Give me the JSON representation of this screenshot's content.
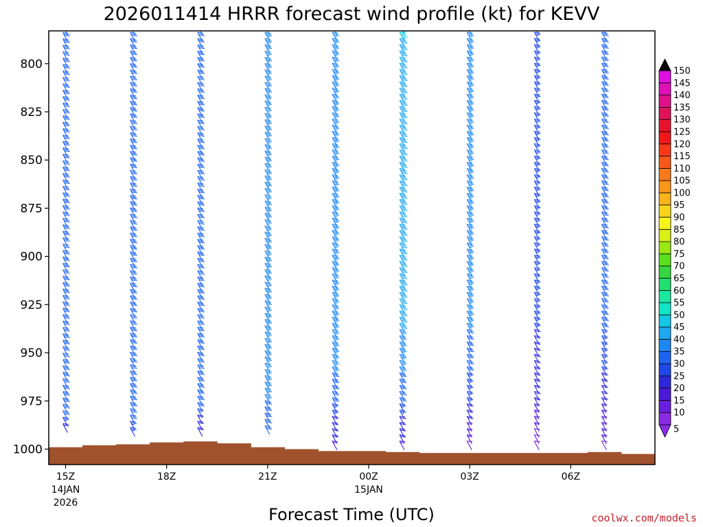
{
  "chart_data": {
    "type": "wind-barb-time-height",
    "title": "2026011414 HRRR forecast wind profile (kt) for KEVV",
    "xlabel": "Forecast Time (UTC)",
    "ylabel": "",
    "credit": "coolwx.com/models",
    "y_axis": {
      "units": "hPa",
      "inverted": true,
      "range": [
        1008,
        783
      ],
      "ticks": [
        800,
        825,
        850,
        875,
        900,
        925,
        950,
        975,
        1000
      ],
      "tick_labels": [
        "800",
        "825",
        "850",
        "875",
        "900",
        "925",
        "950",
        "975",
        "1000"
      ]
    },
    "x_axis": {
      "range_hours": [
        -0.5,
        17.5
      ],
      "ticks": [
        {
          "hour": 0,
          "label": "15Z",
          "sub": [
            "14JAN",
            "2026"
          ]
        },
        {
          "hour": 3,
          "label": "18Z",
          "sub": []
        },
        {
          "hour": 6,
          "label": "21Z",
          "sub": []
        },
        {
          "hour": 9,
          "label": "00Z",
          "sub": [
            "15JAN"
          ]
        },
        {
          "hour": 12,
          "label": "03Z",
          "sub": []
        },
        {
          "hour": 15,
          "label": "06Z",
          "sub": []
        }
      ]
    },
    "terrain": {
      "color": "#a0522d",
      "surface_pressure_hpa": [
        999,
        998,
        997.5,
        996.5,
        996,
        997,
        999,
        1000,
        1001,
        1001,
        1001.5,
        1002,
        1002,
        1002,
        1002,
        1002,
        1001.5,
        1002.5
      ]
    },
    "barb_columns": [
      {
        "hour": 0,
        "bottom_hpa": 990,
        "speed_kt": [
          30,
          30,
          30,
          30,
          30,
          30,
          30,
          30,
          30,
          30,
          30,
          30,
          30,
          30,
          30,
          30,
          30,
          30,
          30,
          30,
          30,
          30,
          30,
          30,
          30,
          30,
          30,
          30,
          30,
          30,
          30,
          30,
          30,
          30,
          30,
          30,
          30,
          30,
          30,
          30,
          30,
          30,
          30,
          30,
          30,
          30,
          30,
          30,
          30,
          30,
          30,
          30,
          30,
          30,
          30,
          30,
          30,
          30,
          30,
          30,
          30,
          25,
          20
        ]
      },
      {
        "hour": 2,
        "bottom_hpa": 992,
        "speed_kt": [
          30,
          30,
          30,
          30,
          30,
          30,
          30,
          30,
          30,
          30,
          30,
          30,
          30,
          30,
          30,
          30,
          30,
          30,
          30,
          30,
          30,
          30,
          30,
          30,
          30,
          30,
          30,
          30,
          30,
          30,
          30,
          30,
          30,
          30,
          30,
          30,
          30,
          30,
          30,
          30,
          30,
          30,
          30,
          30,
          30,
          30,
          30,
          30,
          30,
          30,
          30,
          30,
          30,
          30,
          30,
          30,
          30,
          30,
          30,
          30,
          30,
          30,
          30,
          25,
          25
        ]
      },
      {
        "hour": 4,
        "bottom_hpa": 992,
        "speed_kt": [
          30,
          30,
          30,
          30,
          30,
          30,
          30,
          30,
          30,
          30,
          30,
          30,
          30,
          30,
          30,
          30,
          30,
          30,
          30,
          30,
          30,
          30,
          30,
          30,
          30,
          30,
          30,
          30,
          30,
          30,
          30,
          30,
          30,
          30,
          30,
          30,
          30,
          30,
          30,
          30,
          30,
          30,
          30,
          30,
          30,
          30,
          30,
          30,
          30,
          30,
          30,
          30,
          30,
          30,
          30,
          30,
          30,
          30,
          30,
          30,
          30,
          25,
          20,
          20,
          20
        ]
      },
      {
        "hour": 6,
        "bottom_hpa": 991,
        "speed_kt": [
          35,
          35,
          35,
          35,
          35,
          35,
          35,
          35,
          35,
          35,
          35,
          35,
          35,
          35,
          35,
          35,
          35,
          35,
          35,
          35,
          35,
          35,
          35,
          35,
          35,
          35,
          35,
          35,
          35,
          35,
          35,
          35,
          35,
          35,
          35,
          35,
          35,
          35,
          35,
          35,
          35,
          35,
          35,
          35,
          35,
          35,
          35,
          35,
          35,
          35,
          35,
          35,
          35,
          35,
          35,
          35,
          35,
          35,
          35,
          35,
          30,
          30,
          30,
          30,
          30
        ]
      },
      {
        "hour": 8,
        "bottom_hpa": 999,
        "speed_kt": [
          35,
          35,
          35,
          35,
          35,
          35,
          35,
          35,
          35,
          35,
          35,
          35,
          35,
          35,
          35,
          35,
          35,
          35,
          35,
          35,
          35,
          35,
          35,
          35,
          35,
          35,
          35,
          35,
          35,
          35,
          35,
          35,
          35,
          35,
          35,
          35,
          35,
          35,
          35,
          35,
          35,
          35,
          35,
          35,
          35,
          35,
          35,
          35,
          35,
          35,
          35,
          35,
          35,
          35,
          35,
          35,
          30,
          30,
          30,
          30,
          30,
          25,
          25,
          20,
          20,
          20,
          20,
          15
        ]
      },
      {
        "hour": 10,
        "bottom_hpa": 999,
        "speed_kt": [
          45,
          45,
          40,
          40,
          40,
          40,
          40,
          40,
          40,
          40,
          40,
          40,
          40,
          40,
          40,
          40,
          40,
          40,
          40,
          40,
          40,
          40,
          40,
          40,
          40,
          40,
          40,
          40,
          40,
          40,
          40,
          40,
          40,
          40,
          40,
          40,
          40,
          40,
          40,
          40,
          40,
          40,
          40,
          40,
          40,
          40,
          40,
          40,
          40,
          35,
          35,
          35,
          35,
          35,
          35,
          35,
          30,
          30,
          30,
          30,
          30,
          25,
          25,
          20,
          20,
          20,
          20,
          15
        ]
      },
      {
        "hour": 12,
        "bottom_hpa": 999,
        "speed_kt": [
          35,
          35,
          35,
          35,
          35,
          35,
          35,
          35,
          35,
          35,
          35,
          35,
          35,
          35,
          35,
          35,
          35,
          35,
          35,
          35,
          35,
          35,
          35,
          35,
          35,
          35,
          35,
          35,
          35,
          35,
          35,
          35,
          35,
          35,
          35,
          35,
          35,
          35,
          35,
          35,
          35,
          35,
          35,
          35,
          35,
          35,
          35,
          35,
          35,
          30,
          30,
          30,
          30,
          30,
          30,
          30,
          25,
          25,
          25,
          25,
          25,
          20,
          20,
          20,
          15,
          15,
          15,
          10
        ]
      },
      {
        "hour": 14,
        "bottom_hpa": 999,
        "speed_kt": [
          25,
          25,
          25,
          25,
          25,
          25,
          25,
          25,
          25,
          25,
          25,
          25,
          25,
          25,
          25,
          25,
          25,
          25,
          25,
          25,
          25,
          25,
          25,
          25,
          25,
          25,
          25,
          25,
          25,
          25,
          25,
          25,
          25,
          25,
          25,
          25,
          25,
          25,
          25,
          25,
          25,
          25,
          25,
          25,
          25,
          25,
          25,
          25,
          25,
          20,
          20,
          20,
          20,
          20,
          20,
          20,
          20,
          20,
          20,
          20,
          20,
          15,
          15,
          15,
          15,
          10,
          10,
          10
        ]
      },
      {
        "hour": 16,
        "bottom_hpa": 999,
        "speed_kt": [
          30,
          30,
          30,
          30,
          30,
          30,
          30,
          30,
          30,
          30,
          30,
          30,
          30,
          30,
          30,
          30,
          30,
          30,
          30,
          30,
          30,
          30,
          30,
          30,
          30,
          30,
          30,
          30,
          30,
          30,
          30,
          30,
          30,
          30,
          30,
          30,
          30,
          30,
          30,
          30,
          30,
          30,
          30,
          30,
          30,
          30,
          30,
          30,
          30,
          25,
          25,
          25,
          25,
          25,
          25,
          25,
          20,
          20,
          20,
          20,
          20,
          15,
          15,
          15,
          15,
          15,
          15,
          10
        ]
      }
    ],
    "colorbar": {
      "levels": [
        5,
        10,
        15,
        20,
        25,
        30,
        35,
        40,
        45,
        50,
        55,
        60,
        65,
        70,
        75,
        80,
        85,
        90,
        95,
        100,
        105,
        110,
        115,
        120,
        125,
        130,
        135,
        140,
        145,
        150
      ],
      "colors": [
        "#8b2be2",
        "#6a1fe0",
        "#4b1ad6",
        "#2d28d8",
        "#1f48e8",
        "#1e64f0",
        "#1e88f2",
        "#1ea8f0",
        "#14c8e6",
        "#12e6c8",
        "#18e8a0",
        "#22e070",
        "#34d83e",
        "#5ae01c",
        "#9ae814",
        "#d8f014",
        "#f8f41a",
        "#f8d41a",
        "#f8b41a",
        "#f8961a",
        "#f87a1a",
        "#f8581a",
        "#f83818",
        "#f01818",
        "#e8142e",
        "#e0125a",
        "#e0108a",
        "#e010b8",
        "#e010e0"
      ],
      "under_color": "#8b2be2",
      "over_color": "#000000"
    }
  }
}
